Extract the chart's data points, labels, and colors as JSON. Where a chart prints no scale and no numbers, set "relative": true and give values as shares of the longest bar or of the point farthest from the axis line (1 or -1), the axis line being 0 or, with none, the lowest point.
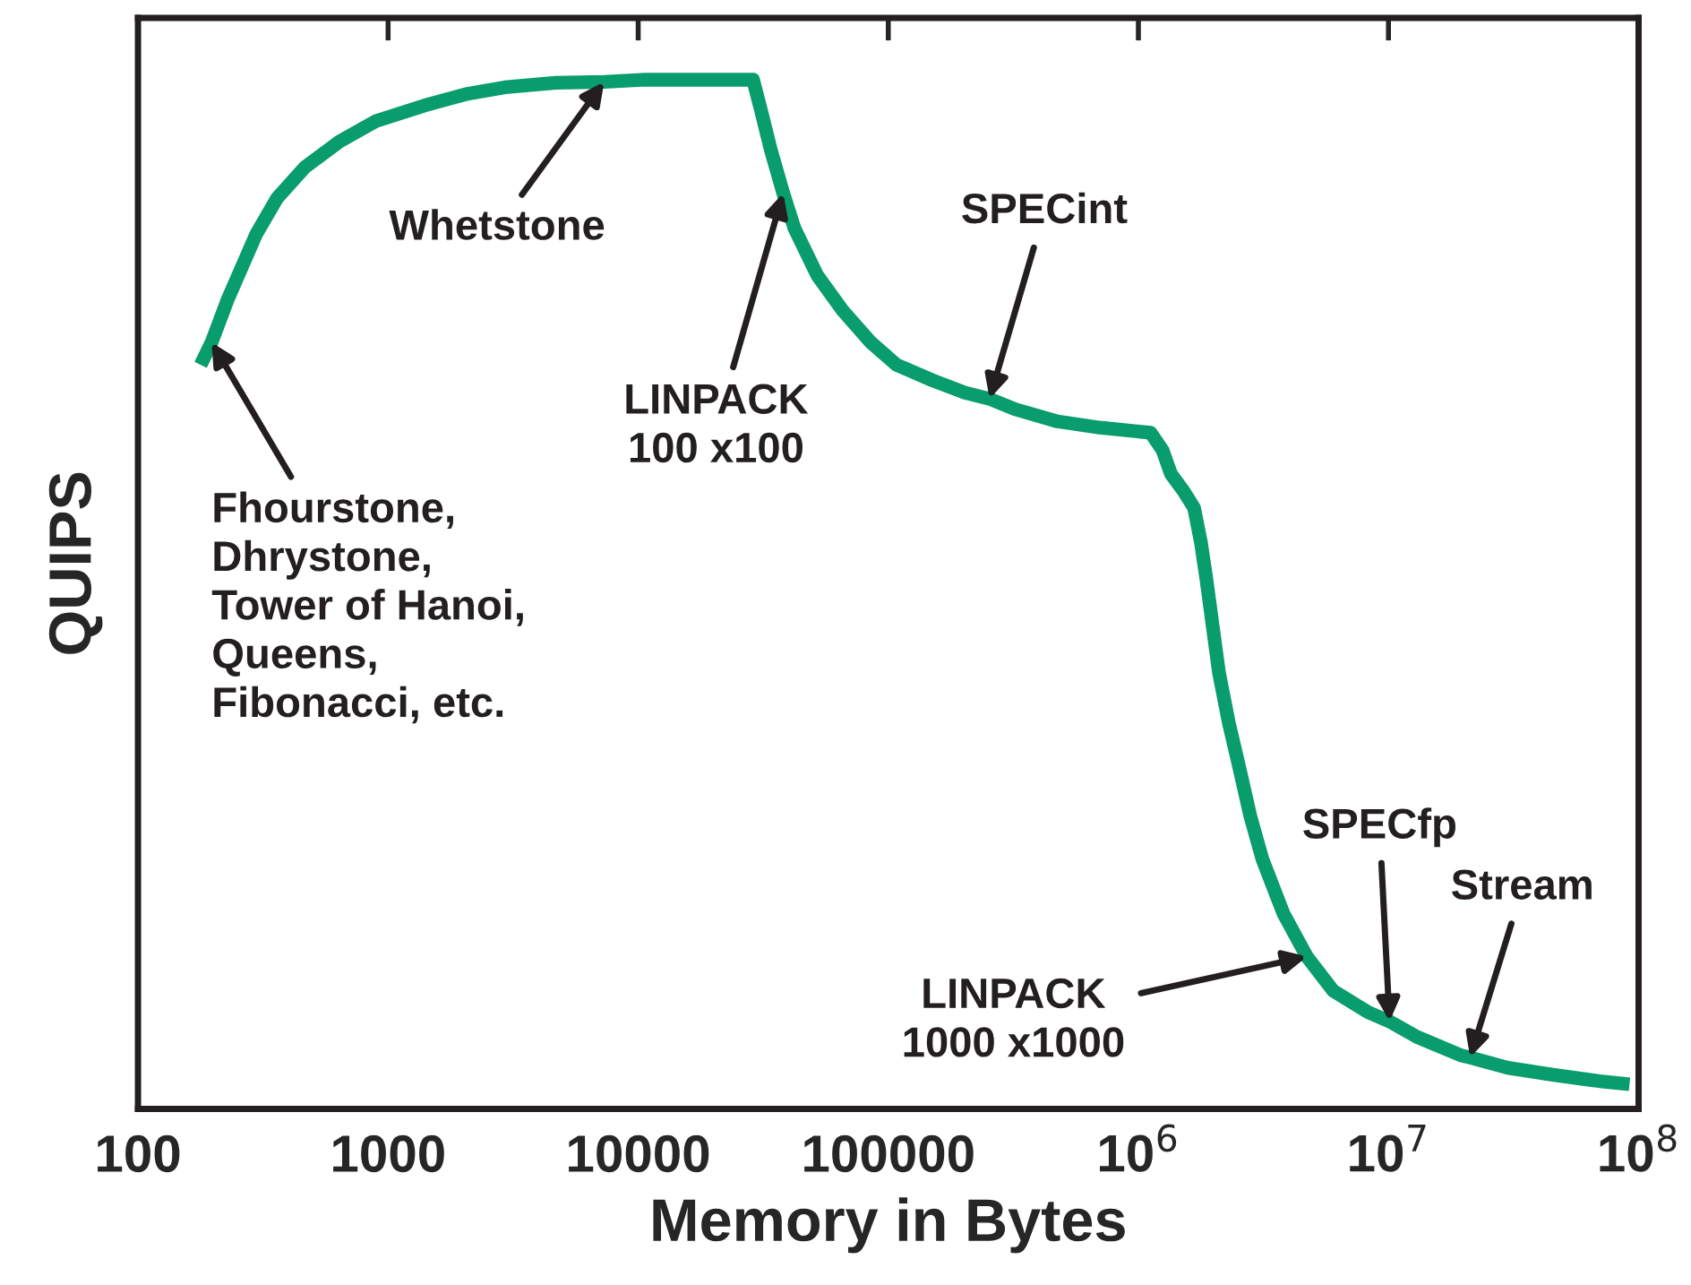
{
  "chart_data": {
    "type": "line",
    "relative": true,
    "log": "x",
    "xlabel": "Memory in Bytes",
    "ylabel": "QUIPS",
    "tick_labels": "x",
    "marker": "none",
    "line_style": "solid",
    "xlim": [
      100,
      100000000
    ],
    "xticks": [
      100,
      1000,
      10000,
      100000,
      {
        "value": 1000000,
        "label": "10$^{6}$"
      },
      {
        "value": 10000000,
        "label": "10$^{7}$"
      },
      {
        "value": 100000000,
        "label": "10$^{8}$"
      }
    ],
    "series": [
      {
        "color": "#099c6c",
        "x": [
          178,
          197,
          228,
          297,
          360,
          465,
          640,
          897,
          1400,
          2050,
          3000,
          4680,
          7310,
          10700,
          28800,
          31000,
          33900,
          38000,
          42100,
          52000,
          65600,
          85000,
          108000,
          150000,
          202000,
          254000,
          320000,
          475000,
          700000,
          1120000,
          1250000,
          1350000,
          1520000,
          1670000,
          1780000,
          1870000,
          1980000,
          2100000,
          2300000,
          2520000,
          2800000,
          3130000,
          3800000,
          4720000,
          6000000,
          8280000,
          10100000,
          13000000,
          19500000,
          21200000,
          30000000,
          46000000,
          70000000,
          92000000
        ],
        "values": [
          0.723,
          0.745,
          0.786,
          0.85,
          0.885,
          0.915,
          0.94,
          0.96,
          0.975,
          0.986,
          0.993,
          0.997,
          0.998,
          1.0,
          1.0,
          0.97,
          0.932,
          0.89,
          0.856,
          0.81,
          0.776,
          0.745,
          0.723,
          0.708,
          0.696,
          0.69,
          0.68,
          0.668,
          0.662,
          0.657,
          0.64,
          0.617,
          0.6,
          0.584,
          0.55,
          0.515,
          0.47,
          0.424,
          0.375,
          0.334,
          0.285,
          0.243,
          0.19,
          0.148,
          0.115,
          0.094,
          0.085,
          0.07,
          0.052,
          0.05,
          0.04,
          0.033,
          0.027,
          0.024
        ]
      }
    ],
    "annotations": [
      {
        "text": "Fhourstone,\nDhrystone,\nTower of Hanoi,\nQueens,\nFibonacci, etc.",
        "x": 197,
        "y": 0.745
      },
      {
        "text": "Whetstone",
        "x": 7310,
        "y": 0.998
      },
      {
        "text": "LINPACK\n100 x100",
        "x": 38000,
        "y": 0.89
      },
      {
        "text": "SPECint",
        "x": 254000,
        "y": 0.69
      },
      {
        "text": "LINPACK\n1000 x1000",
        "x": 4720000,
        "y": 0.148
      },
      {
        "text": "SPECfp",
        "x": 10100000,
        "y": 0.085
      },
      {
        "text": "Stream",
        "x": 21200000,
        "y": 0.05
      }
    ]
  }
}
